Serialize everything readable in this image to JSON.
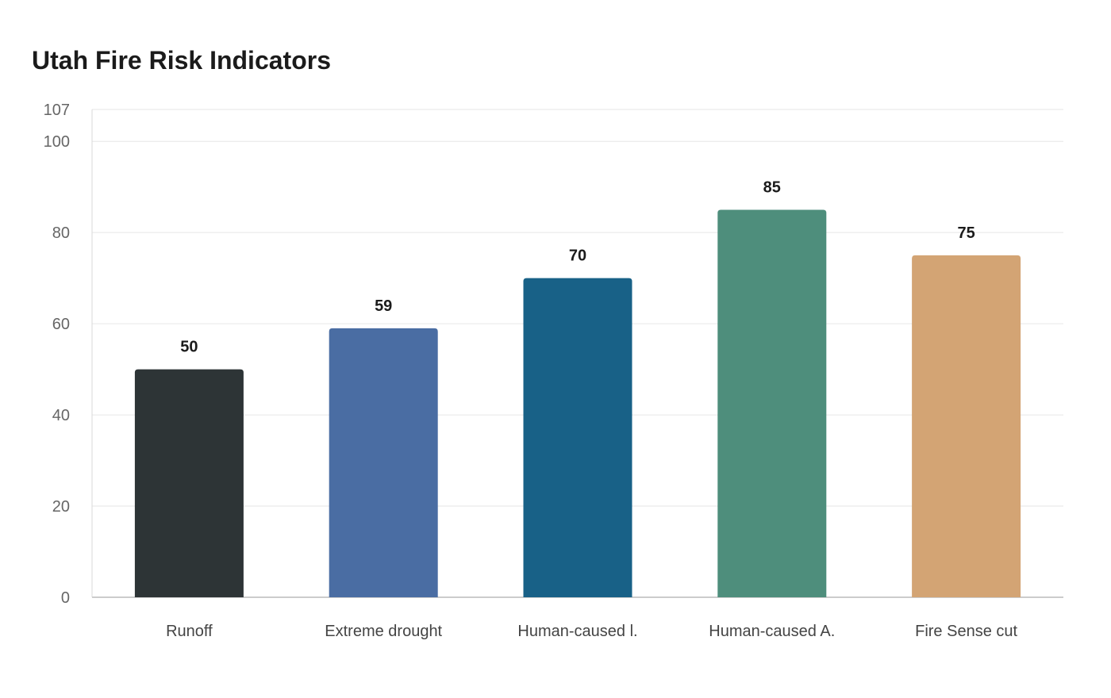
{
  "chart_data": {
    "type": "bar",
    "title": "Utah Fire Risk Indicators",
    "xlabel": "",
    "ylabel": "",
    "categories": [
      "Runoff",
      "Extreme drought",
      "Human-caused l.",
      "Human-caused A.",
      "Fire Sense cut"
    ],
    "values": [
      50,
      59,
      70,
      85,
      75
    ],
    "colors": [
      "#2d3436",
      "#4a6da3",
      "#186187",
      "#4e8e7c",
      "#d3a474"
    ],
    "ylim": [
      0,
      107
    ],
    "yticks": [
      0,
      20,
      40,
      60,
      80,
      100,
      107
    ],
    "grid": true,
    "legend": "none"
  }
}
